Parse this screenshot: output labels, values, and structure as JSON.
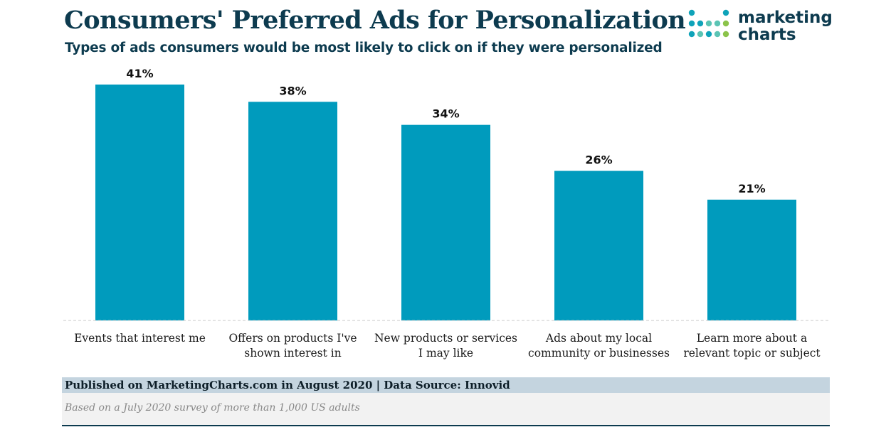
{
  "header": {
    "title": "Consumers' Preferred Ads for Personalization",
    "subtitle": "Types of ads consumers would be most likely to click on if they were personalized"
  },
  "logo": {
    "line1": "marketing",
    "line2": "charts",
    "dot_colors": [
      "#0fa3b9",
      "#5bc4b4",
      "#8bc34a",
      "#0d3b4f"
    ]
  },
  "chart_data": {
    "type": "bar",
    "categories": [
      [
        "Events that interest  me"
      ],
      [
        "Offers  on products I've",
        "shown interest  in"
      ],
      [
        "New products  or services",
        "I may like"
      ],
      [
        "Ads about my local",
        "community or businesses"
      ],
      [
        "Learn more about a",
        "relevant topic or subject"
      ]
    ],
    "values": [
      41,
      38,
      34,
      26,
      21
    ],
    "value_labels": [
      "41%",
      "38%",
      "34%",
      "26%",
      "21%"
    ],
    "ylim": [
      0,
      41
    ],
    "bar_color": "#009bbd",
    "grid": false
  },
  "footer": {
    "published": "Published on MarketingCharts.com in August 2020 | Data Source: Innovid",
    "note": "Based on a July 2020 survey of more than 1,000 US adults"
  }
}
